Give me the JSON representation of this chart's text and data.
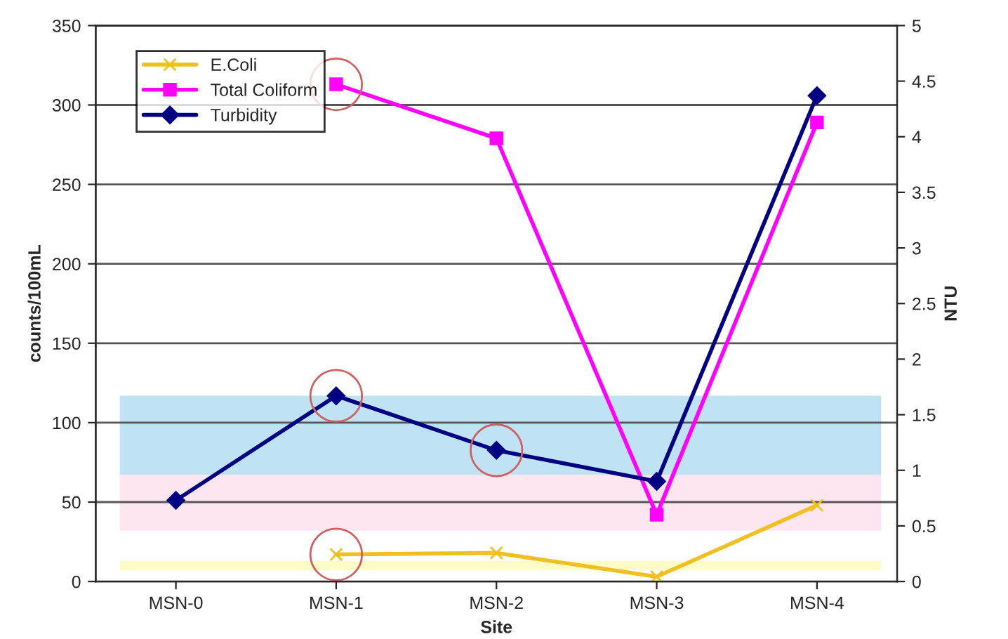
{
  "chart_data": {
    "type": "line",
    "xlabel": "Site",
    "ylabel": "counts/100mL",
    "y2label": "NTU",
    "categories": [
      "MSN-0",
      "MSN-1",
      "MSN-2",
      "MSN-3",
      "MSN-4"
    ],
    "series": [
      {
        "name": "E.Coli",
        "color": "#f0c020",
        "marker": "cross",
        "values": [
          null,
          17,
          18,
          3,
          48
        ]
      },
      {
        "name": "Total Coliform",
        "color": "#ff00ff",
        "marker": "square",
        "values": [
          null,
          313,
          279,
          42,
          289
        ]
      },
      {
        "name": "Turbidity",
        "color": "#000080",
        "marker": "diamond",
        "axis": "y2",
        "values": [
          0.73,
          1.67,
          1.18,
          0.9,
          4.37
        ]
      }
    ],
    "ylim": [
      0,
      350
    ],
    "yticks": [
      0,
      50,
      100,
      150,
      200,
      250,
      300,
      350
    ],
    "y2lim": [
      0,
      5
    ],
    "y2ticks": [
      0,
      0.5,
      1,
      1.5,
      2,
      2.5,
      3,
      3.5,
      4,
      4.5,
      5
    ],
    "bands": [
      {
        "axis": "y",
        "from": 67,
        "to": 117,
        "color": "#bfe3f5"
      },
      {
        "axis": "y",
        "from": 32,
        "to": 67,
        "color": "#fde6f0"
      },
      {
        "axis": "y",
        "from": 7,
        "to": 13,
        "color": "#fdfbc8"
      }
    ],
    "grid": "y",
    "legend": "top left",
    "line_style": "solid"
  }
}
